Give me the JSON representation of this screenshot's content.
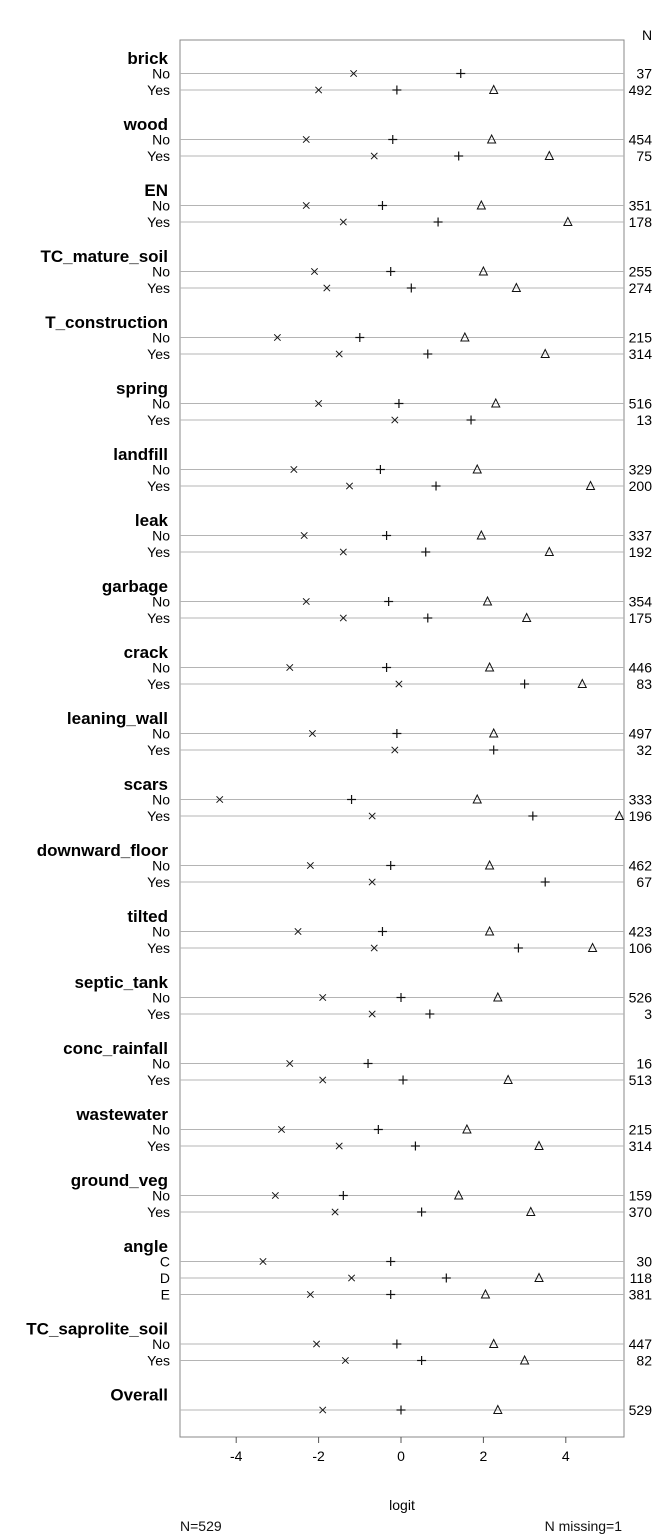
{
  "chart_data": {
    "type": "scatter",
    "title": "",
    "xlabel": "logit",
    "ylabel": "",
    "xlim": [
      -5.3,
      5.4
    ],
    "xticks": [
      -4,
      -2,
      0,
      2,
      4
    ],
    "grid": false,
    "marker_legend": "none",
    "n_column_header": "N",
    "footer": {
      "left": "N=529",
      "right": "N missing=1"
    },
    "groups": [
      {
        "name": "brick",
        "levels": [
          {
            "label": "No",
            "n": "37",
            "x": -1.15,
            "plus": 1.45,
            "tri": null
          },
          {
            "label": "Yes",
            "n": "492",
            "x": -2.0,
            "plus": -0.1,
            "tri": 2.25
          }
        ]
      },
      {
        "name": "wood",
        "levels": [
          {
            "label": "No",
            "n": "454",
            "x": -2.3,
            "plus": -0.2,
            "tri": 2.2
          },
          {
            "label": "Yes",
            "n": "75",
            "x": -0.65,
            "plus": 1.4,
            "tri": 3.6
          }
        ]
      },
      {
        "name": "EN",
        "levels": [
          {
            "label": "No",
            "n": "351",
            "x": -2.3,
            "plus": -0.45,
            "tri": 1.95
          },
          {
            "label": "Yes",
            "n": "178",
            "x": -1.4,
            "plus": 0.9,
            "tri": 4.05
          }
        ]
      },
      {
        "name": "TC_mature_soil",
        "levels": [
          {
            "label": "No",
            "n": "255",
            "x": -2.1,
            "plus": -0.25,
            "tri": 2.0
          },
          {
            "label": "Yes",
            "n": "274",
            "x": -1.8,
            "plus": 0.25,
            "tri": 2.8
          }
        ]
      },
      {
        "name": "T_construction",
        "levels": [
          {
            "label": "No",
            "n": "215",
            "x": -3.0,
            "plus": -1.0,
            "tri": 1.55
          },
          {
            "label": "Yes",
            "n": "314",
            "x": -1.5,
            "plus": 0.65,
            "tri": 3.5
          }
        ]
      },
      {
        "name": "spring",
        "levels": [
          {
            "label": "No",
            "n": "516",
            "x": -2.0,
            "plus": -0.05,
            "tri": 2.3
          },
          {
            "label": "Yes",
            "n": "13",
            "x": -0.15,
            "plus": 1.7,
            "tri": null
          }
        ]
      },
      {
        "name": "landfill",
        "levels": [
          {
            "label": "No",
            "n": "329",
            "x": -2.6,
            "plus": -0.5,
            "tri": 1.85
          },
          {
            "label": "Yes",
            "n": "200",
            "x": -1.25,
            "plus": 0.85,
            "tri": 4.6
          }
        ]
      },
      {
        "name": "leak",
        "levels": [
          {
            "label": "No",
            "n": "337",
            "x": -2.35,
            "plus": -0.35,
            "tri": 1.95
          },
          {
            "label": "Yes",
            "n": "192",
            "x": -1.4,
            "plus": 0.6,
            "tri": 3.6
          }
        ]
      },
      {
        "name": "garbage",
        "levels": [
          {
            "label": "No",
            "n": "354",
            "x": -2.3,
            "plus": -0.3,
            "tri": 2.1
          },
          {
            "label": "Yes",
            "n": "175",
            "x": -1.4,
            "plus": 0.65,
            "tri": 3.05
          }
        ]
      },
      {
        "name": "crack",
        "levels": [
          {
            "label": "No",
            "n": "446",
            "x": -2.7,
            "plus": -0.35,
            "tri": 2.15
          },
          {
            "label": "Yes",
            "n": "83",
            "x": -0.05,
            "plus": 3.0,
            "tri": 4.4
          }
        ]
      },
      {
        "name": "leaning_wall",
        "levels": [
          {
            "label": "No",
            "n": "497",
            "x": -2.15,
            "plus": -0.1,
            "tri": 2.25
          },
          {
            "label": "Yes",
            "n": "32",
            "x": -0.15,
            "plus": 2.25,
            "tri": null
          }
        ]
      },
      {
        "name": "scars",
        "levels": [
          {
            "label": "No",
            "n": "333",
            "x": -4.4,
            "plus": -1.2,
            "tri": 1.85
          },
          {
            "label": "Yes",
            "n": "196",
            "x": -0.7,
            "plus": 3.2,
            "tri": 5.3
          }
        ]
      },
      {
        "name": "downward_floor",
        "levels": [
          {
            "label": "No",
            "n": "462",
            "x": -2.2,
            "plus": -0.25,
            "tri": 2.15
          },
          {
            "label": "Yes",
            "n": "67",
            "x": -0.7,
            "plus": 3.5,
            "tri": null
          }
        ]
      },
      {
        "name": "tilted",
        "levels": [
          {
            "label": "No",
            "n": "423",
            "x": -2.5,
            "plus": -0.45,
            "tri": 2.15
          },
          {
            "label": "Yes",
            "n": "106",
            "x": -0.65,
            "plus": 2.85,
            "tri": 4.65
          }
        ]
      },
      {
        "name": "septic_tank",
        "levels": [
          {
            "label": "No",
            "n": "526",
            "x": -1.9,
            "plus": 0.0,
            "tri": 2.35
          },
          {
            "label": "Yes",
            "n": "3",
            "x": -0.7,
            "plus": 0.7,
            "tri": null
          }
        ]
      },
      {
        "name": "conc_rainfall",
        "levels": [
          {
            "label": "No",
            "n": "16",
            "x": -2.7,
            "plus": -0.8,
            "tri": null
          },
          {
            "label": "Yes",
            "n": "513",
            "x": -1.9,
            "plus": 0.05,
            "tri": 2.6
          }
        ]
      },
      {
        "name": "wastewater",
        "levels": [
          {
            "label": "No",
            "n": "215",
            "x": -2.9,
            "plus": -0.55,
            "tri": 1.6
          },
          {
            "label": "Yes",
            "n": "314",
            "x": -1.5,
            "plus": 0.35,
            "tri": 3.35
          }
        ]
      },
      {
        "name": "ground_veg",
        "levels": [
          {
            "label": "No",
            "n": "159",
            "x": -3.05,
            "plus": -1.4,
            "tri": 1.4
          },
          {
            "label": "Yes",
            "n": "370",
            "x": -1.6,
            "plus": 0.5,
            "tri": 3.15
          }
        ]
      },
      {
        "name": "angle",
        "levels": [
          {
            "label": "C",
            "n": "30",
            "x": -3.35,
            "plus": -0.25,
            "tri": null
          },
          {
            "label": "D",
            "n": "118",
            "x": -1.2,
            "plus": 1.1,
            "tri": 3.35
          },
          {
            "label": "E",
            "n": "381",
            "x": -2.2,
            "plus": -0.25,
            "tri": 2.05
          }
        ]
      },
      {
        "name": "TC_saprolite_soil",
        "levels": [
          {
            "label": "No",
            "n": "447",
            "x": -2.05,
            "plus": -0.1,
            "tri": 2.25
          },
          {
            "label": "Yes",
            "n": "82",
            "x": -1.35,
            "plus": 0.5,
            "tri": 3.0
          }
        ]
      },
      {
        "name": "Overall",
        "levels": [
          {
            "label": "",
            "n": "529",
            "x": -1.9,
            "plus": 0.0,
            "tri": 2.35
          }
        ]
      }
    ]
  }
}
